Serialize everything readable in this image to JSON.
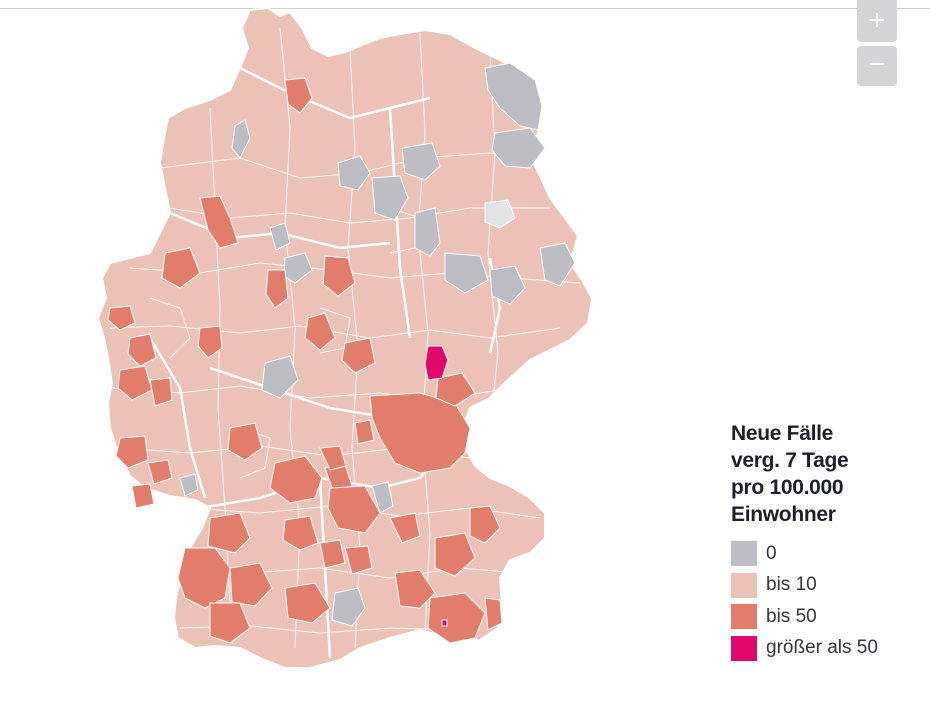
{
  "map": {
    "region": "Deutschland",
    "classes": [
      {
        "id": "zero",
        "label": "0",
        "color": "#bdbdc3"
      },
      {
        "id": "low",
        "label": "bis 10",
        "color": "#ecc2b6"
      },
      {
        "id": "mid",
        "label": "bis 50",
        "color": "#e27d6c"
      },
      {
        "id": "high",
        "label": "größer als 50",
        "color": "#e4086d"
      }
    ],
    "border_color": "#ffffff"
  },
  "zoom": {
    "in_label": "+",
    "out_label": "−"
  },
  "legend": {
    "title_lines": [
      "Neue Fälle",
      "verg. 7 Tage",
      "pro 100.000",
      "Einwohner"
    ],
    "items": [
      {
        "label": "0",
        "color": "#bdbdc3"
      },
      {
        "label": "bis 10",
        "color": "#ecc2b6"
      },
      {
        "label": "bis 50",
        "color": "#e27d6c"
      },
      {
        "label": "größer als 50",
        "color": "#e4086d"
      }
    ]
  }
}
